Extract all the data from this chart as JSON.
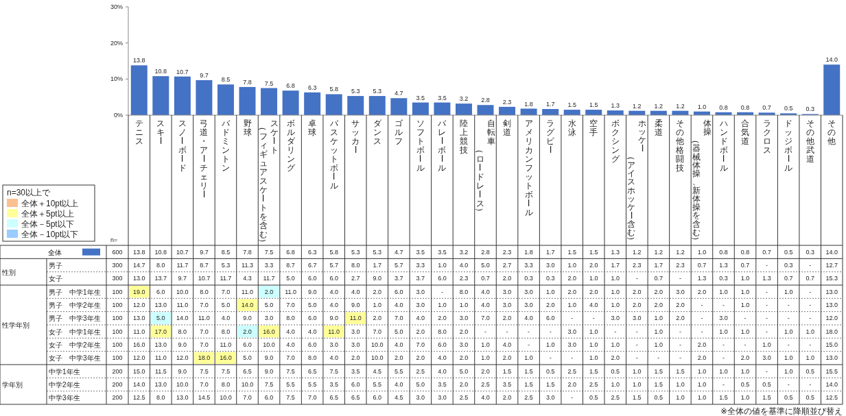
{
  "chart_data": [
    {
      "type": "bar",
      "categories": [
        "テニス",
        "スキー",
        "スノーボード",
        "弓道・アーチェリー",
        "バドミントン",
        "野球",
        "スケート（フィギュアスケートを含む）",
        "ボルダリング",
        "卓球",
        "バスケットボール",
        "サッカー",
        "ダンス",
        "ゴルフ",
        "ソフトボール",
        "バレーボール",
        "陸上競技",
        "自転車（ロードレース）",
        "剣道",
        "アメリカンフットボール",
        "ラグビー",
        "水泳",
        "空手",
        "ボクシング",
        "ホッケー（アイスホッケー含む）",
        "柔道",
        "その他格闘技",
        "体操（器械体操、新体操を含む）",
        "ハンドボール",
        "合気道",
        "ラクロス",
        "ドッジボール",
        "その他武道",
        "その他"
      ],
      "values": [
        13.8,
        10.8,
        10.7,
        9.7,
        8.5,
        7.8,
        7.5,
        6.8,
        6.3,
        5.8,
        5.3,
        5.3,
        4.7,
        3.5,
        3.5,
        3.2,
        2.8,
        2.3,
        1.8,
        1.7,
        1.5,
        1.5,
        1.3,
        1.2,
        1.2,
        1.2,
        1.0,
        0.8,
        0.8,
        0.7,
        0.5,
        0.3,
        14.0
      ],
      "value_labels": [
        "13.8",
        "10.8",
        "10.7",
        "9.7",
        "8.5",
        "7.8",
        "7.5",
        "6.8",
        "6.3",
        "5.8",
        "5.3",
        "5.3",
        "4.7",
        "3.5",
        "3.5",
        "3.2",
        "2.8",
        "2.3",
        "1.8",
        "1.7",
        "1.5",
        "1.5",
        "1.3",
        "1.2",
        "1.2",
        "1.2",
        "1.0",
        "0.8",
        "0.8",
        "0.7",
        "0.5",
        "0.3",
        "14.0"
      ],
      "color": "#4472c4",
      "ylim": [
        0,
        30
      ],
      "yticks": [
        {
          "value": 0,
          "label": "0%"
        },
        {
          "value": 10,
          "label": "10%"
        },
        {
          "value": 20,
          "label": "20%"
        },
        {
          "value": 30,
          "label": "30%"
        }
      ]
    },
    {
      "type": "heatmap",
      "categories": [
        null,
        null,
        null,
        null,
        null,
        null,
        null,
        null,
        null,
        null,
        null,
        null,
        null,
        null,
        null,
        null,
        null,
        null,
        null,
        null,
        null,
        null,
        null,
        null,
        null,
        null,
        null,
        null,
        null,
        null,
        null,
        null,
        null
      ],
      "y_categories": [
        "全体",
        "男子",
        "女子",
        "男子　中学1年生",
        "男子　中学2年生",
        "男子　中学3年生",
        "女子　中学1年生",
        "女子　中学2年生",
        "女子　中学3年生",
        "中学1年生",
        "中学2年生",
        "中学3年生"
      ],
      "y2_categories": [
        "600",
        "300",
        "300",
        "100",
        "100",
        "100",
        "100",
        "100",
        "100",
        "200",
        "200",
        "200"
      ],
      "cells": [
        [
          13.8,
          10.8,
          10.7,
          9.7,
          8.5,
          7.8,
          7.5,
          6.8,
          6.3,
          5.8,
          5.3,
          5.3,
          4.7,
          3.5,
          3.5,
          3.2,
          2.8,
          2.3,
          1.8,
          1.7,
          1.5,
          1.5,
          1.3,
          1.2,
          1.2,
          1.2,
          1.0,
          0.8,
          0.8,
          0.7,
          0.5,
          0.3,
          14.0
        ],
        [
          14.7,
          8.0,
          11.7,
          8.7,
          5.3,
          11.3,
          3.3,
          8.7,
          6.7,
          5.7,
          8.0,
          1.7,
          5.7,
          3.3,
          1.0,
          4.0,
          5.0,
          2.7,
          3.3,
          3.0,
          1.0,
          2.0,
          1.7,
          2.3,
          1.7,
          2.3,
          0.7,
          1.3,
          0.7,
          null,
          0.3,
          null,
          12.7
        ],
        [
          13.0,
          13.7,
          9.7,
          10.7,
          11.7,
          4.3,
          11.7,
          5.0,
          6.0,
          6.0,
          2.7,
          9.0,
          3.7,
          3.7,
          6.0,
          2.3,
          0.7,
          2.0,
          0.3,
          0.3,
          2.0,
          1.0,
          1.0,
          null,
          0.7,
          null,
          1.3,
          0.3,
          1.0,
          1.3,
          0.7,
          0.7,
          15.3
        ],
        [
          19.0,
          6.0,
          10.0,
          8.0,
          7.0,
          11.0,
          2.0,
          11.0,
          9.0,
          4.0,
          4.0,
          2.0,
          6.0,
          3.0,
          null,
          8.0,
          4.0,
          3.0,
          3.0,
          1.0,
          2.0,
          2.0,
          1.0,
          2.0,
          2.0,
          3.0,
          2.0,
          1.0,
          1.0,
          null,
          1.0,
          null,
          13.0
        ],
        [
          12.0,
          13.0,
          11.0,
          7.0,
          5.0,
          14.0,
          5.0,
          7.0,
          5.0,
          4.0,
          9.0,
          1.0,
          4.0,
          3.0,
          1.0,
          1.0,
          4.0,
          3.0,
          3.0,
          2.0,
          1.0,
          4.0,
          1.0,
          2.0,
          2.0,
          2.0,
          null,
          null,
          1.0,
          null,
          null,
          null,
          13.0
        ],
        [
          13.0,
          5.0,
          14.0,
          11.0,
          4.0,
          9.0,
          3.0,
          8.0,
          6.0,
          9.0,
          11.0,
          2.0,
          7.0,
          4.0,
          2.0,
          3.0,
          7.0,
          2.0,
          4.0,
          6.0,
          null,
          null,
          3.0,
          3.0,
          1.0,
          2.0,
          null,
          3.0,
          null,
          null,
          null,
          null,
          12.0
        ],
        [
          11.0,
          17.0,
          8.0,
          7.0,
          8.0,
          2.0,
          16.0,
          4.0,
          4.0,
          11.0,
          3.0,
          7.0,
          5.0,
          2.0,
          8.0,
          2.0,
          null,
          null,
          null,
          null,
          3.0,
          1.0,
          null,
          null,
          1.0,
          null,
          null,
          1.0,
          1.0,
          null,
          1.0,
          1.0,
          18.0
        ],
        [
          16.0,
          13.0,
          9.0,
          7.0,
          11.0,
          6.0,
          10.0,
          4.0,
          6.0,
          3.0,
          3.0,
          10.0,
          4.0,
          7.0,
          6.0,
          3.0,
          1.0,
          4.0,
          null,
          1.0,
          3.0,
          1.0,
          1.0,
          null,
          1.0,
          null,
          2.0,
          null,
          null,
          1.0,
          null,
          null,
          15.0
        ],
        [
          12.0,
          11.0,
          12.0,
          18.0,
          16.0,
          5.0,
          9.0,
          7.0,
          8.0,
          4.0,
          2.0,
          10.0,
          2.0,
          2.0,
          4.0,
          2.0,
          1.0,
          2.0,
          1.0,
          null,
          null,
          1.0,
          2.0,
          null,
          null,
          null,
          2.0,
          null,
          2.0,
          3.0,
          1.0,
          1.0,
          13.0
        ],
        [
          15.0,
          11.5,
          9.0,
          7.5,
          7.5,
          6.5,
          9.0,
          7.5,
          6.5,
          7.5,
          3.5,
          4.5,
          5.5,
          2.5,
          4.0,
          5.0,
          2.0,
          1.5,
          1.5,
          0.5,
          2.5,
          1.5,
          0.5,
          1.0,
          1.5,
          1.5,
          1.0,
          1.0,
          1.0,
          null,
          1.0,
          0.5,
          15.5
        ],
        [
          14.0,
          13.0,
          10.0,
          7.0,
          8.0,
          10.0,
          7.5,
          5.5,
          5.5,
          3.5,
          6.0,
          5.5,
          4.0,
          5.0,
          3.5,
          2.0,
          2.5,
          3.5,
          1.5,
          1.5,
          2.0,
          2.5,
          1.0,
          1.0,
          1.5,
          1.0,
          1.0,
          null,
          0.5,
          0.5,
          null,
          null,
          14.0
        ],
        [
          12.5,
          8.0,
          13.0,
          14.5,
          10.0,
          7.0,
          6.0,
          7.5,
          7.0,
          6.5,
          6.5,
          6.0,
          4.5,
          3.0,
          3.0,
          2.5,
          4.0,
          2.0,
          2.5,
          3.0,
          null,
          0.5,
          2.5,
          1.5,
          0.5,
          1.0,
          1.0,
          1.5,
          1.0,
          1.5,
          0.5,
          0.5,
          12.5
        ]
      ],
      "cell_labels": [
        [
          "13.8",
          "10.8",
          "10.7",
          "9.7",
          "8.5",
          "7.8",
          "7.5",
          "6.8",
          "6.3",
          "5.8",
          "5.3",
          "5.3",
          "4.7",
          "3.5",
          "3.5",
          "3.2",
          "2.8",
          "2.3",
          "1.8",
          "1.7",
          "1.5",
          "1.5",
          "1.3",
          "1.2",
          "1.2",
          "1.2",
          "1.0",
          "0.8",
          "0.8",
          "0.7",
          "0.5",
          "0.3",
          "14.0"
        ],
        [
          "14.7",
          "8.0",
          "11.7",
          "8.7",
          "5.3",
          "11.3",
          "3.3",
          "8.7",
          "6.7",
          "5.7",
          "8.0",
          "1.7",
          "5.7",
          "3.3",
          "1.0",
          "4.0",
          "5.0",
          "2.7",
          "3.3",
          "3.0",
          "1.0",
          "2.0",
          "1.7",
          "2.3",
          "1.7",
          "2.3",
          "0.7",
          "1.3",
          "0.7",
          "-",
          "0.3",
          "-",
          "12.7"
        ],
        [
          "13.0",
          "13.7",
          "9.7",
          "10.7",
          "11.7",
          "4.3",
          "11.7",
          "5.0",
          "6.0",
          "6.0",
          "2.7",
          "9.0",
          "3.7",
          "3.7",
          "6.0",
          "2.3",
          "0.7",
          "2.0",
          "0.3",
          "0.3",
          "2.0",
          "1.0",
          "1.0",
          "-",
          "0.7",
          "-",
          "1.3",
          "0.3",
          "1.0",
          "1.3",
          "0.7",
          "0.7",
          "15.3"
        ],
        [
          "19.0",
          "6.0",
          "10.0",
          "8.0",
          "7.0",
          "11.0",
          "2.0",
          "11.0",
          "9.0",
          "4.0",
          "4.0",
          "2.0",
          "6.0",
          "3.0",
          "-",
          "8.0",
          "4.0",
          "3.0",
          "3.0",
          "1.0",
          "2.0",
          "2.0",
          "1.0",
          "2.0",
          "2.0",
          "3.0",
          "2.0",
          "1.0",
          "1.0",
          "-",
          "1.0",
          "-",
          "13.0"
        ],
        [
          "12.0",
          "13.0",
          "11.0",
          "7.0",
          "5.0",
          "14.0",
          "5.0",
          "7.0",
          "5.0",
          "4.0",
          "9.0",
          "1.0",
          "4.0",
          "3.0",
          "1.0",
          "1.0",
          "4.0",
          "3.0",
          "3.0",
          "2.0",
          "1.0",
          "4.0",
          "1.0",
          "2.0",
          "2.0",
          "2.0",
          "-",
          "-",
          "1.0",
          "-",
          "-",
          "-",
          "13.0"
        ],
        [
          "13.0",
          "5.0",
          "14.0",
          "11.0",
          "4.0",
          "9.0",
          "3.0",
          "8.0",
          "6.0",
          "9.0",
          "11.0",
          "2.0",
          "7.0",
          "4.0",
          "2.0",
          "3.0",
          "7.0",
          "2.0",
          "4.0",
          "6.0",
          "-",
          "-",
          "3.0",
          "3.0",
          "1.0",
          "2.0",
          "-",
          "3.0",
          "-",
          "-",
          "-",
          "-",
          "12.0"
        ],
        [
          "11.0",
          "17.0",
          "8.0",
          "7.0",
          "8.0",
          "2.0",
          "16.0",
          "4.0",
          "4.0",
          "11.0",
          "3.0",
          "7.0",
          "5.0",
          "2.0",
          "8.0",
          "2.0",
          "-",
          "-",
          "-",
          "-",
          "3.0",
          "1.0",
          "-",
          "-",
          "1.0",
          "-",
          "-",
          "1.0",
          "1.0",
          "-",
          "1.0",
          "1.0",
          "18.0"
        ],
        [
          "16.0",
          "13.0",
          "9.0",
          "7.0",
          "11.0",
          "6.0",
          "10.0",
          "4.0",
          "6.0",
          "3.0",
          "3.0",
          "10.0",
          "4.0",
          "7.0",
          "6.0",
          "3.0",
          "1.0",
          "4.0",
          "-",
          "1.0",
          "3.0",
          "1.0",
          "1.0",
          "-",
          "1.0",
          "-",
          "2.0",
          "-",
          "-",
          "1.0",
          "-",
          "-",
          "15.0"
        ],
        [
          "12.0",
          "11.0",
          "12.0",
          "18.0",
          "16.0",
          "5.0",
          "9.0",
          "7.0",
          "8.0",
          "4.0",
          "2.0",
          "10.0",
          "2.0",
          "2.0",
          "4.0",
          "2.0",
          "1.0",
          "2.0",
          "1.0",
          "-",
          "-",
          "1.0",
          "2.0",
          "-",
          "-",
          "-",
          "2.0",
          "-",
          "2.0",
          "3.0",
          "1.0",
          "1.0",
          "13.0"
        ],
        [
          "15.0",
          "11.5",
          "9.0",
          "7.5",
          "7.5",
          "6.5",
          "9.0",
          "7.5",
          "6.5",
          "7.5",
          "3.5",
          "4.5",
          "5.5",
          "2.5",
          "4.0",
          "5.0",
          "2.0",
          "1.5",
          "1.5",
          "0.5",
          "2.5",
          "1.5",
          "0.5",
          "1.0",
          "1.5",
          "1.5",
          "1.0",
          "1.0",
          "1.0",
          "-",
          "1.0",
          "0.5",
          "15.5"
        ],
        [
          "14.0",
          "13.0",
          "10.0",
          "7.0",
          "8.0",
          "10.0",
          "7.5",
          "5.5",
          "5.5",
          "3.5",
          "6.0",
          "5.5",
          "4.0",
          "5.0",
          "3.5",
          "2.0",
          "2.5",
          "3.5",
          "1.5",
          "1.5",
          "2.0",
          "2.5",
          "1.0",
          "1.0",
          "1.5",
          "1.0",
          "1.0",
          "-",
          "0.5",
          "0.5",
          "-",
          "-",
          "14.0"
        ],
        [
          "12.5",
          "8.0",
          "13.0",
          "14.5",
          "10.0",
          "7.0",
          "6.0",
          "7.5",
          "7.0",
          "6.5",
          "6.5",
          "6.0",
          "4.5",
          "3.0",
          "3.0",
          "2.5",
          "4.0",
          "2.0",
          "2.5",
          "3.0",
          "-",
          "0.5",
          "2.5",
          "1.5",
          "0.5",
          "1.0",
          "1.0",
          "1.5",
          "1.0",
          "1.5",
          "0.5",
          "0.5",
          "12.5"
        ]
      ],
      "tick_labels": "y",
      "annotations": [
        "n=",
        "性別",
        "性学年別",
        "学年別",
        "n=30以上で",
        "全体＋10pt以上",
        "全体＋5pt以上",
        "全体－5pt以下",
        "全体－10pt以下",
        "※全体の値を基準に降順並び替え"
      ]
    }
  ]
}
